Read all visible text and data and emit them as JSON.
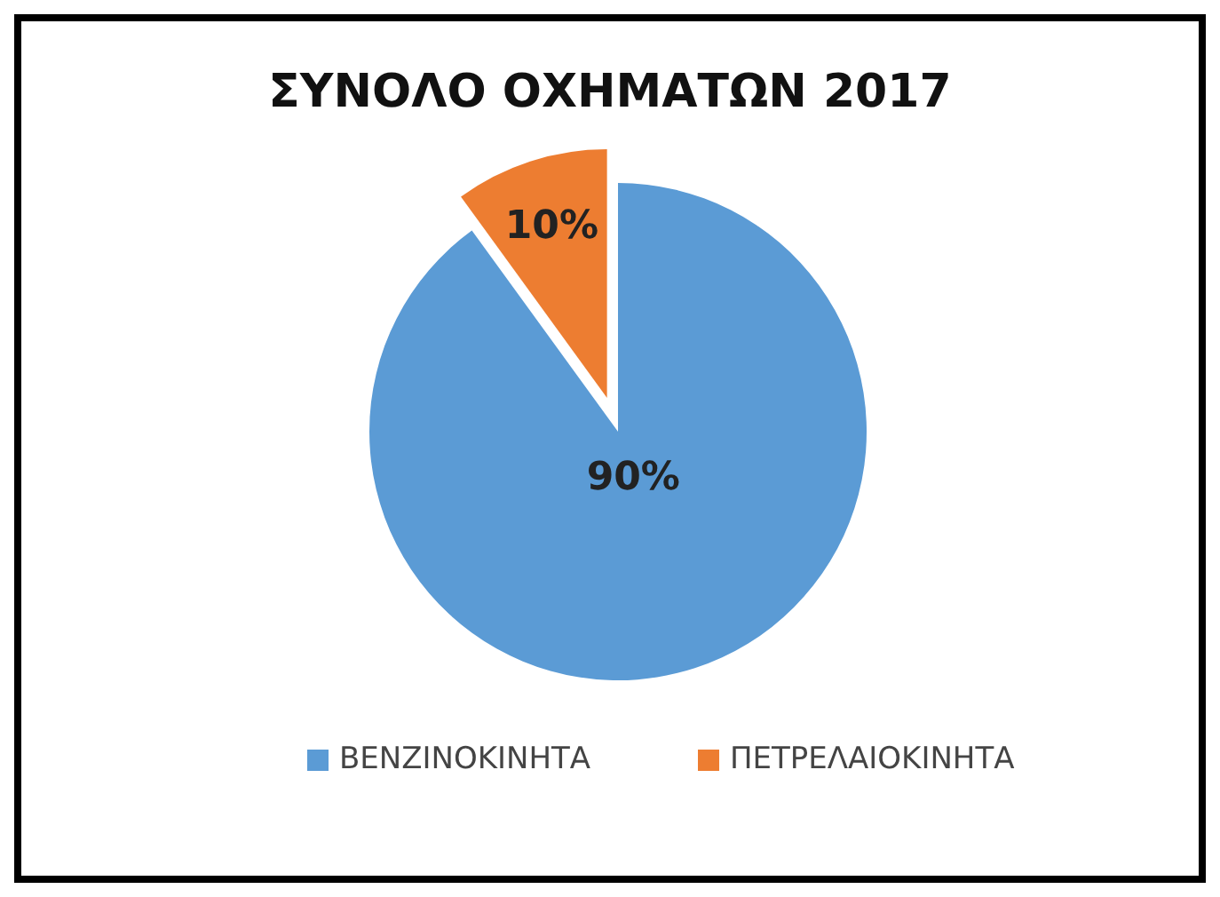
{
  "chart_data": {
    "type": "pie",
    "title": "ΣΥΝΟΛΟ ΟΧΗΜΑΤΩΝ 2017",
    "categories": [
      "ΒΕΝΖΙΝΟΚΙΝΗΤΑ",
      "ΠΕΤΡΕΛΑΙΟΚΙΝΗΤΑ"
    ],
    "values": [
      90,
      10
    ],
    "colors": [
      "#5b9bd5",
      "#ed7d31"
    ],
    "value_labels": [
      "90%",
      "10%"
    ],
    "legend": "bottom"
  }
}
